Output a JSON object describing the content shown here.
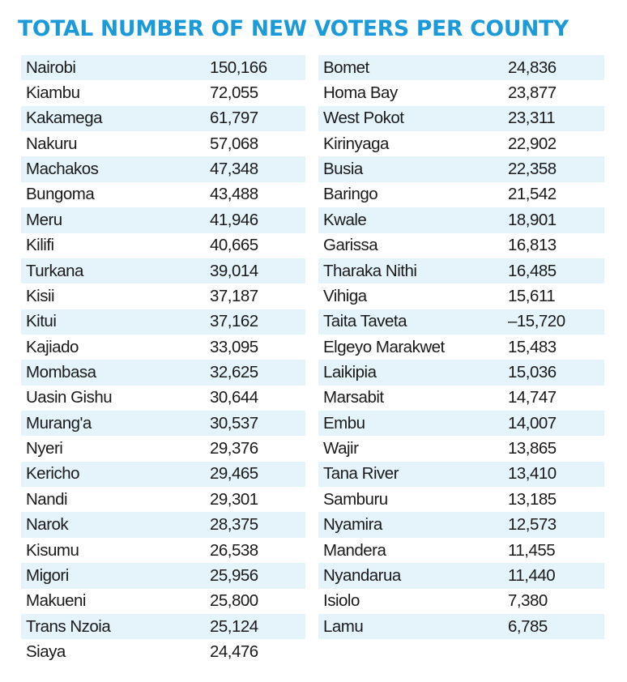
{
  "title": "TOTAL NUMBER OF NEW VOTERS PER COUNTY",
  "colors": {
    "title": "#1a9ad8",
    "row_shade": "#e5f3fb",
    "text": "#1a1a1a"
  },
  "chart_data": {
    "type": "table",
    "title": "TOTAL NUMBER OF NEW VOTERS PER COUNTY",
    "columns": [
      {
        "rows": [
          {
            "county": "Nairobi",
            "value": "150,166"
          },
          {
            "county": "Kiambu",
            "value": "72,055"
          },
          {
            "county": "Kakamega",
            "value": "61,797"
          },
          {
            "county": "Nakuru",
            "value": "57,068"
          },
          {
            "county": "Machakos",
            "value": "47,348"
          },
          {
            "county": "Bungoma",
            "value": "43,488"
          },
          {
            "county": "Meru",
            "value": "41,946"
          },
          {
            "county": "Kilifi",
            "value": "40,665"
          },
          {
            "county": "Turkana",
            "value": "39,014"
          },
          {
            "county": "Kisii",
            "value": "37,187"
          },
          {
            "county": "Kitui",
            "value": "37,162"
          },
          {
            "county": "Kajiado",
            "value": "33,095"
          },
          {
            "county": "Mombasa",
            "value": "32,625"
          },
          {
            "county": "Uasin Gishu",
            "value": "30,644"
          },
          {
            "county": "Murang'a",
            "value": "30,537"
          },
          {
            "county": "Nyeri",
            "value": "29,376"
          },
          {
            "county": "Kericho",
            "value": "29,465"
          },
          {
            "county": "Nandi",
            "value": "29,301"
          },
          {
            "county": "Narok",
            "value": "28,375"
          },
          {
            "county": "Kisumu",
            "value": "26,538"
          },
          {
            "county": "Migori",
            "value": "25,956"
          },
          {
            "county": "Makueni",
            "value": "25,800"
          },
          {
            "county": "Trans Nzoia",
            "value": "25,124"
          },
          {
            "county": "Siaya",
            "value": "24,476"
          }
        ]
      },
      {
        "rows": [
          {
            "county": "Bomet",
            "value": "24,836"
          },
          {
            "county": "Homa Bay",
            "value": "23,877"
          },
          {
            "county": "West Pokot",
            "value": "23,311"
          },
          {
            "county": "Kirinyaga",
            "value": "22,902"
          },
          {
            "county": "Busia",
            "value": "22,358"
          },
          {
            "county": "Baringo",
            "value": "21,542"
          },
          {
            "county": "Kwale",
            "value": "18,901"
          },
          {
            "county": "Garissa",
            "value": "16,813"
          },
          {
            "county": "Tharaka Nithi",
            "value": "16,485"
          },
          {
            "county": "Vihiga",
            "value": "15,611"
          },
          {
            "county": "Taita Taveta",
            "value": "–15,720"
          },
          {
            "county": "Elgeyo Marakwet",
            "value": "15,483"
          },
          {
            "county": "Laikipia",
            "value": "15,036"
          },
          {
            "county": "Marsabit",
            "value": "14,747"
          },
          {
            "county": "Embu",
            "value": "14,007"
          },
          {
            "county": "Wajir",
            "value": "13,865"
          },
          {
            "county": "Tana River",
            "value": "13,410"
          },
          {
            "county": "Samburu",
            "value": "13,185"
          },
          {
            "county": "Nyamira",
            "value": "12,573"
          },
          {
            "county": "Mandera",
            "value": "11,455"
          },
          {
            "county": "Nyandarua",
            "value": "11,440"
          },
          {
            "county": "Isiolo",
            "value": "7,380"
          },
          {
            "county": "Lamu",
            "value": "6,785"
          }
        ]
      }
    ]
  }
}
